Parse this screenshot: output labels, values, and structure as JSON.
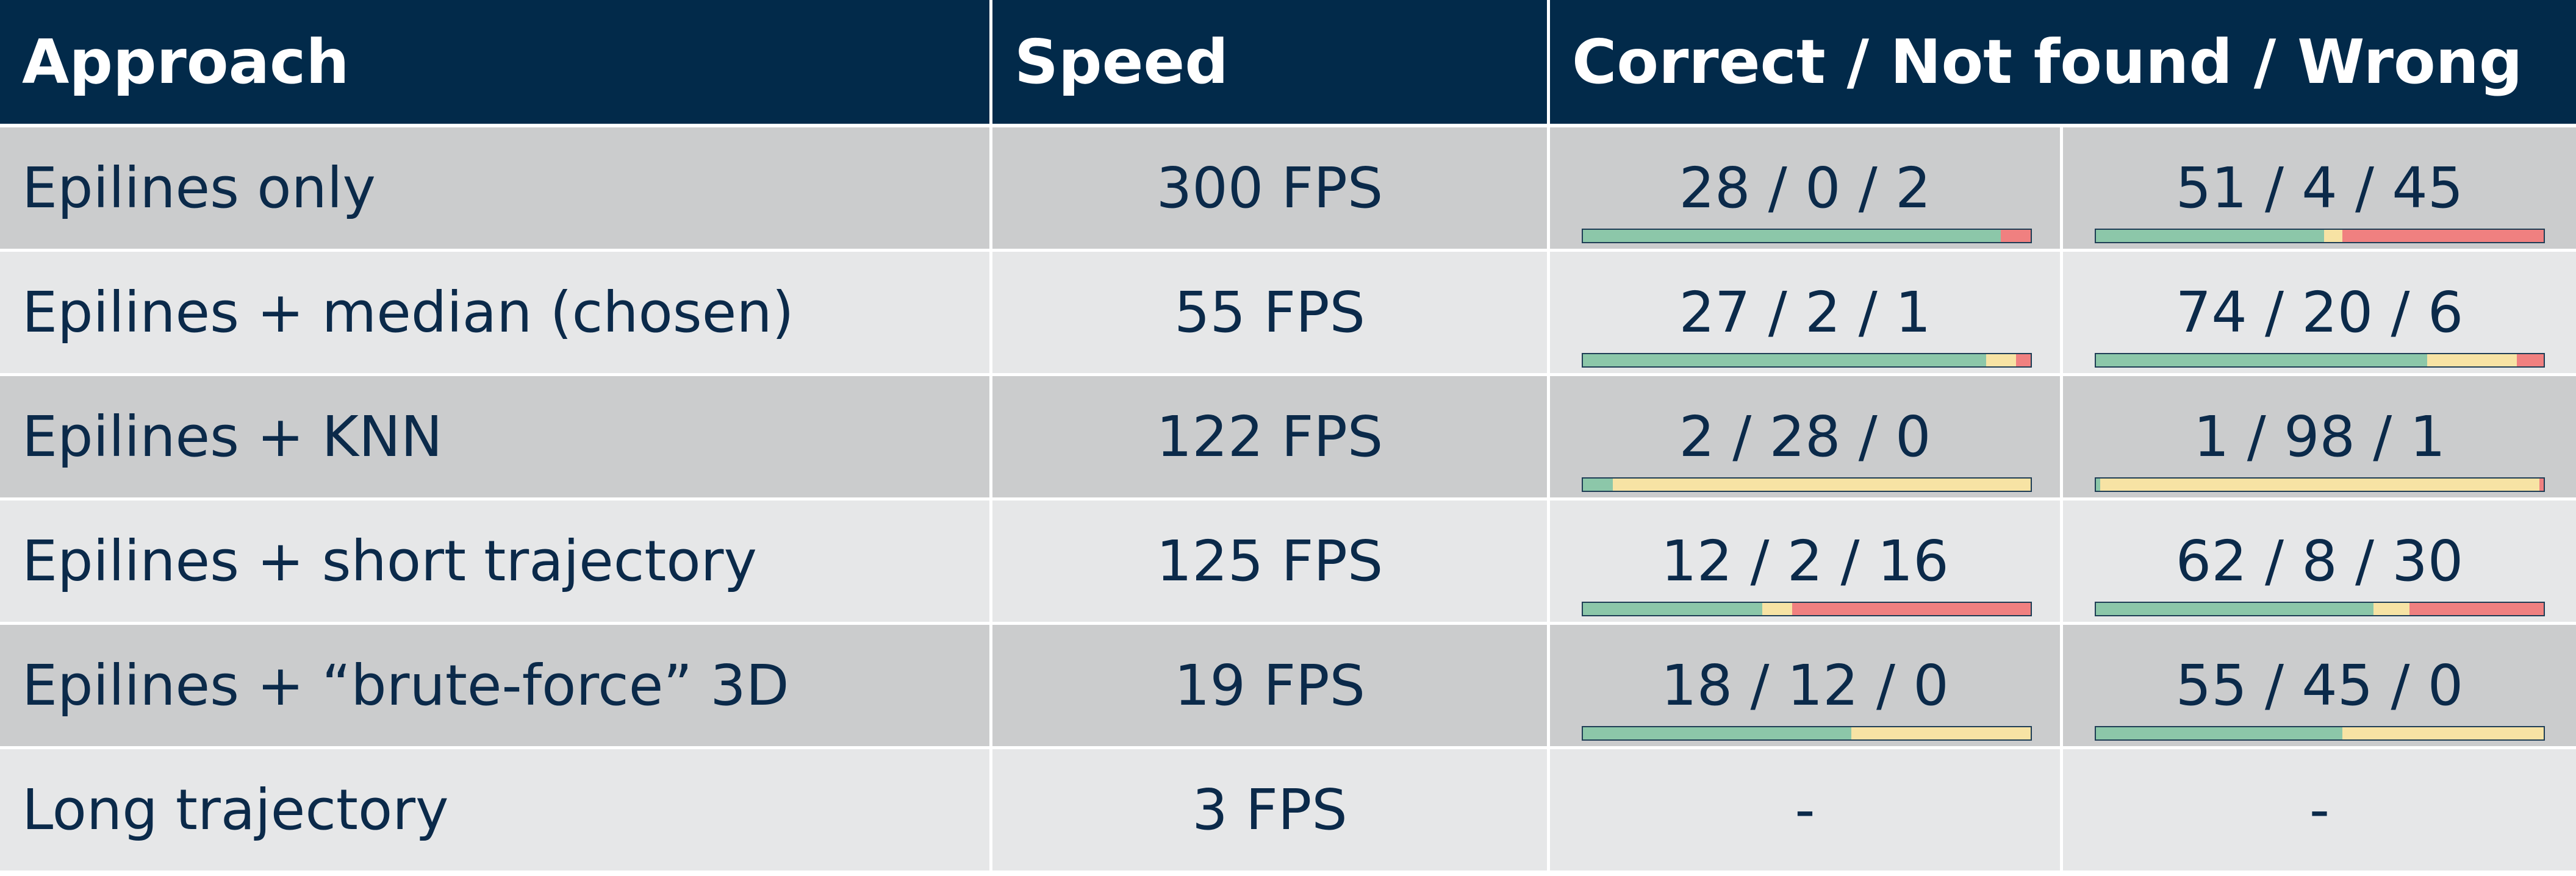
{
  "header": {
    "approach": "Approach",
    "speed": "Speed",
    "results": "Correct / Not found / Wrong"
  },
  "colors": {
    "header_bg": "#022a4a",
    "row_dark": "#cbcccd",
    "row_light": "#e6e7e8",
    "correct": "#8cc7a9",
    "not_found": "#f7e3a4",
    "wrong": "#f08080"
  },
  "rows": [
    {
      "approach": "Epilines only",
      "speed": "300 FPS",
      "set1": {
        "text": "28 / 0 / 2",
        "correct": 28,
        "not_found": 0,
        "wrong": 2
      },
      "set2": {
        "text": "51 / 4 / 45",
        "correct": 51,
        "not_found": 4,
        "wrong": 45
      }
    },
    {
      "approach": "Epilines + median (chosen)",
      "speed": "55 FPS",
      "set1": {
        "text": "27 / 2 / 1",
        "correct": 27,
        "not_found": 2,
        "wrong": 1
      },
      "set2": {
        "text": "74 / 20 / 6",
        "correct": 74,
        "not_found": 20,
        "wrong": 6
      }
    },
    {
      "approach": "Epilines + KNN",
      "speed": "122 FPS",
      "set1": {
        "text": "2 / 28 / 0",
        "correct": 2,
        "not_found": 28,
        "wrong": 0
      },
      "set2": {
        "text": "1 / 98 / 1",
        "correct": 1,
        "not_found": 98,
        "wrong": 1
      }
    },
    {
      "approach": "Epilines + short trajectory",
      "speed": "125 FPS",
      "set1": {
        "text": "12 / 2 / 16",
        "correct": 12,
        "not_found": 2,
        "wrong": 16
      },
      "set2": {
        "text": "62 / 8 / 30",
        "correct": 62,
        "not_found": 8,
        "wrong": 30
      }
    },
    {
      "approach": "Epilines + “brute-force” 3D",
      "speed": "19 FPS",
      "set1": {
        "text": "18 / 12 / 0",
        "correct": 18,
        "not_found": 12,
        "wrong": 0
      },
      "set2": {
        "text": "55 / 45 / 0",
        "correct": 55,
        "not_found": 45,
        "wrong": 0
      }
    },
    {
      "approach": "Long trajectory",
      "speed": "3 FPS",
      "set1": {
        "text": "-"
      },
      "set2": {
        "text": "-"
      }
    }
  ]
}
